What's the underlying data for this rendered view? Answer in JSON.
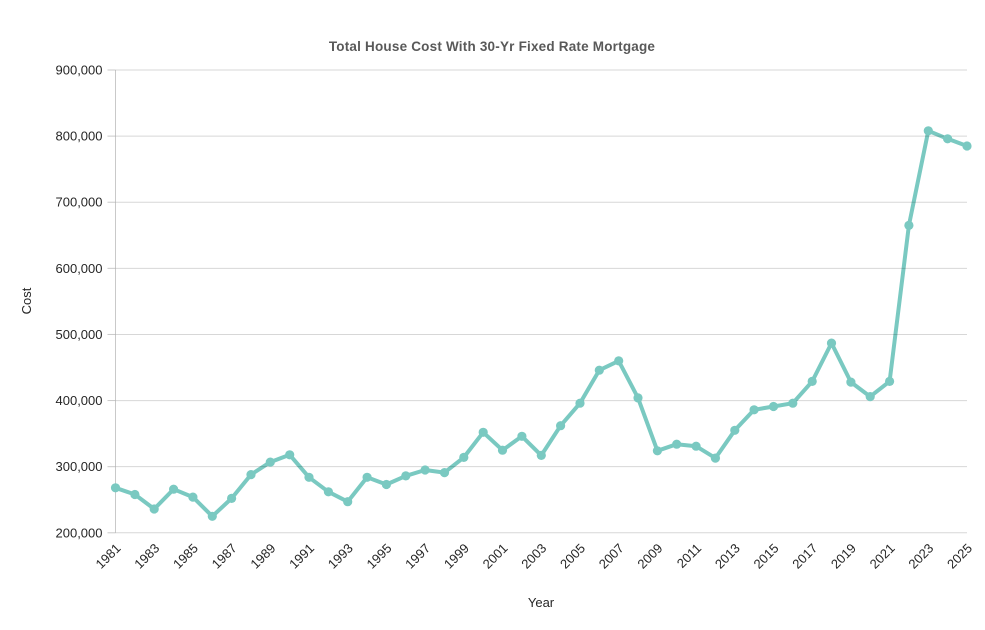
{
  "chart_data": {
    "type": "line",
    "title": "Total House Cost With 30-Yr Fixed Rate Mortgage",
    "xlabel": "Year",
    "ylabel": "Cost",
    "x": [
      1981,
      1982,
      1983,
      1984,
      1985,
      1986,
      1987,
      1988,
      1989,
      1990,
      1991,
      1992,
      1993,
      1994,
      1995,
      1996,
      1997,
      1998,
      1999,
      2000,
      2001,
      2002,
      2003,
      2004,
      2005,
      2006,
      2007,
      2008,
      2009,
      2010,
      2011,
      2012,
      2013,
      2014,
      2015,
      2016,
      2017,
      2018,
      2019,
      2020,
      2021,
      2022,
      2023,
      2024,
      2025
    ],
    "values": [
      268000,
      258000,
      236000,
      266000,
      254000,
      225000,
      252000,
      288000,
      307000,
      318000,
      284000,
      262000,
      247000,
      284000,
      273000,
      286000,
      295000,
      291000,
      314000,
      352000,
      325000,
      346000,
      317000,
      362000,
      396000,
      446000,
      460000,
      404000,
      324000,
      334000,
      331000,
      313000,
      355000,
      386000,
      391000,
      396000,
      429000,
      487000,
      428000,
      406000,
      429000,
      665000,
      808000,
      796000,
      785000
    ],
    "xlim": [
      1981,
      2025
    ],
    "ylim": [
      200000,
      900000
    ],
    "x_tick_labels": [
      "1981",
      "1983",
      "1985",
      "1987",
      "1989",
      "1991",
      "1993",
      "1995",
      "1997",
      "1999",
      "2001",
      "2003",
      "2005",
      "2007",
      "2009",
      "2011",
      "2013",
      "2015",
      "2017",
      "2019",
      "2021",
      "2023",
      "2025"
    ],
    "x_tick_years": [
      1981,
      1983,
      1985,
      1987,
      1989,
      1991,
      1993,
      1995,
      1997,
      1999,
      2001,
      2003,
      2005,
      2007,
      2009,
      2011,
      2013,
      2015,
      2017,
      2019,
      2021,
      2023,
      2025
    ],
    "y_ticks": [
      200000,
      300000,
      400000,
      500000,
      600000,
      700000,
      800000,
      900000
    ],
    "y_tick_labels": [
      "200,000",
      "300,000",
      "400,000",
      "500,000",
      "600,000",
      "700,000",
      "800,000",
      "900,000"
    ],
    "grid": "horizontal",
    "legend": "none",
    "marker": "circle"
  },
  "colors": {
    "line": "#7ac9c1",
    "marker": "#7ac9c1",
    "grid": "#d9d9d9",
    "spine": "#c9c9c9",
    "title_text": "#595959",
    "tick_text": "#262626",
    "background": "#ffffff"
  }
}
